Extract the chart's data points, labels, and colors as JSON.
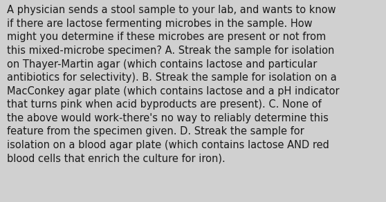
{
  "background_color": "#d0d0d0",
  "text_color": "#1a1a1a",
  "font_size": 10.5,
  "font_family": "DejaVu Sans",
  "text_lines": [
    "A physician sends a stool sample to your lab, and wants to know",
    "if there are lactose fermenting microbes in the sample. How",
    "might you determine if these microbes are present or not from",
    "this mixed-microbe specimen? A. Streak the sample for isolation",
    "on Thayer-Martin agar (which contains lactose and particular",
    "antibiotics for selectivity). B. Streak the sample for isolation on a",
    "MacConkey agar plate (which contains lactose and a pH indicator",
    "that turns pink when acid byproducts are present). C. None of",
    "the above would work-there's no way to reliably determine this",
    "feature from the specimen given. D. Streak the sample for",
    "isolation on a blood agar plate (which contains lactose AND red",
    "blood cells that enrich the culture for iron)."
  ],
  "figwidth": 5.58,
  "figheight": 2.93,
  "dpi": 100
}
